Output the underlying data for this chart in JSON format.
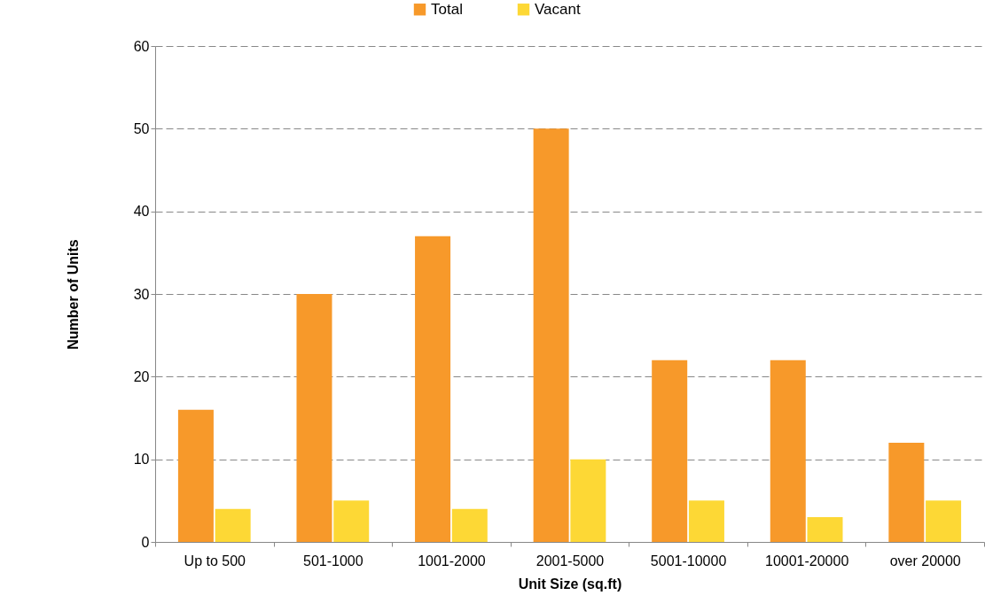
{
  "chart_data": {
    "type": "bar",
    "xlabel": "Unit Size (sq.ft)",
    "ylabel": "Number of Units",
    "categories": [
      "Up to 500",
      "501-1000",
      "1001-2000",
      "2001-5000",
      "5001-10000",
      "10001-20000",
      "over 20000"
    ],
    "series": [
      {
        "name": "Total",
        "color": "#f7992a",
        "values": [
          16,
          30,
          37,
          50,
          22,
          22,
          12
        ]
      },
      {
        "name": "Vacant",
        "color": "#fdd835",
        "values": [
          4,
          5,
          4,
          10,
          5,
          3,
          5
        ]
      }
    ],
    "ylim": [
      0,
      60
    ],
    "yticks": [
      0,
      10,
      20,
      30,
      40,
      50,
      60
    ],
    "grid": "y",
    "legend": "top"
  }
}
